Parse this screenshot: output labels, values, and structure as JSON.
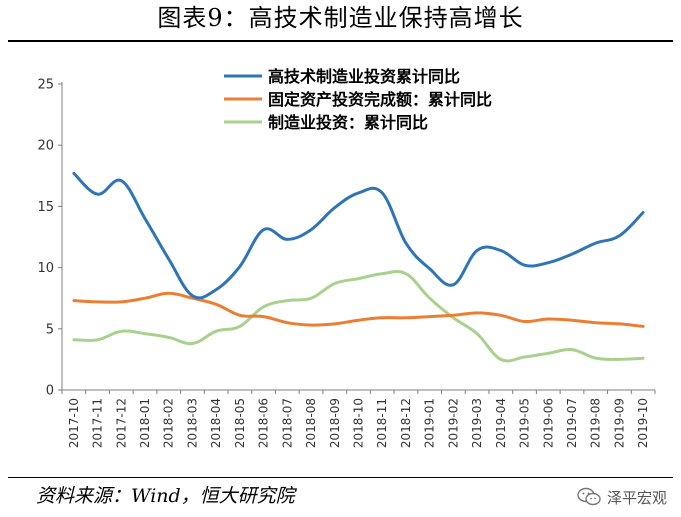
{
  "title": "图表9：高技术制造业保持高增长",
  "source": "资料来源：Wind，恒大研究院",
  "watermark": "泽平宏观",
  "colors": {
    "series1": "#2E75B6",
    "series2": "#ED7D31",
    "series3": "#A9D18E",
    "axis": "#7f7f7f"
  },
  "chart_data": {
    "type": "line",
    "title": "图表9：高技术制造业保持高增长",
    "xlabel": "",
    "ylabel": "",
    "ylim": [
      0,
      25
    ],
    "yticks": [
      "0",
      "5",
      "10",
      "15",
      "20",
      "25"
    ],
    "grid": false,
    "legend": "top-right",
    "categories": [
      "2017-10",
      "2017-11",
      "2017-12",
      "2018-01",
      "2018-02",
      "2018-03",
      "2018-04",
      "2018-05",
      "2018-06",
      "2018-07",
      "2018-08",
      "2018-09",
      "2018-10",
      "2018-11",
      "2018-12",
      "2019-01",
      "2019-02",
      "2019-03",
      "2019-04",
      "2019-05",
      "2019-06",
      "2019-07",
      "2019-08",
      "2019-09",
      "2019-10"
    ],
    "series": [
      {
        "name": "高技术制造业投资累计同比",
        "color": "#2E75B6",
        "values": [
          17.7,
          16.0,
          17.1,
          14.0,
          10.7,
          7.7,
          8.2,
          10.1,
          13.1,
          12.3,
          13.1,
          14.9,
          16.1,
          16.1,
          12.0,
          9.9,
          8.6,
          11.4,
          11.4,
          10.2,
          10.4,
          11.1,
          12.0,
          12.6,
          14.5
        ]
      },
      {
        "name": "固定资产投资完成额：累计同比",
        "color": "#ED7D31",
        "values": [
          7.3,
          7.2,
          7.2,
          7.5,
          7.9,
          7.5,
          7.0,
          6.1,
          6.0,
          5.5,
          5.3,
          5.4,
          5.7,
          5.9,
          5.9,
          6.0,
          6.1,
          6.3,
          6.1,
          5.6,
          5.8,
          5.7,
          5.5,
          5.4,
          5.2
        ]
      },
      {
        "name": "制造业投资：累计同比",
        "color": "#A9D18E",
        "values": [
          4.1,
          4.1,
          4.8,
          4.6,
          4.3,
          3.8,
          4.8,
          5.2,
          6.8,
          7.3,
          7.5,
          8.7,
          9.1,
          9.5,
          9.5,
          7.5,
          5.9,
          4.6,
          2.5,
          2.7,
          3.0,
          3.3,
          2.6,
          2.5,
          2.6
        ]
      }
    ]
  }
}
